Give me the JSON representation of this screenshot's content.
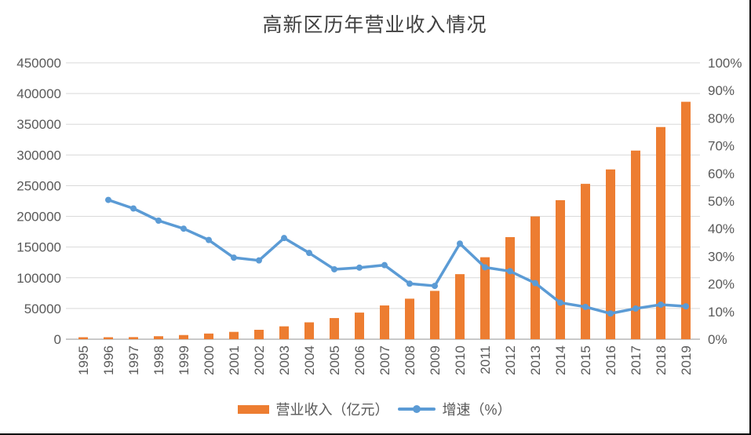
{
  "page": {
    "background": "#ffffff",
    "frame_border_color": "#000000"
  },
  "chart_data": {
    "type": "combo-bar-line",
    "title": "高新区历年营业收入情况",
    "categories": [
      "1995",
      "1996",
      "1997",
      "1998",
      "1999",
      "2000",
      "2001",
      "2002",
      "2003",
      "2004",
      "2005",
      "2006",
      "2007",
      "2008",
      "2009",
      "2010",
      "2011",
      "2012",
      "2013",
      "2014",
      "2015",
      "2016",
      "2017",
      "2018",
      "2019"
    ],
    "series": [
      {
        "name": "营业收入（亿元）",
        "type": "bar",
        "axis": "left",
        "color": "#ED7D31",
        "values": [
          1529,
          2300,
          3388,
          4840,
          6775,
          9209,
          11928,
          15326,
          20939,
          27466,
          34416,
          43320,
          54926,
          65986,
          78707,
          105917,
          133444,
          166219,
          199902,
          226372,
          252957,
          276419,
          307110,
          345459,
          386571
        ]
      },
      {
        "name": "增速（%）",
        "type": "line",
        "axis": "right",
        "color": "#5B9BD5",
        "values": [
          null,
          50.4,
          47.3,
          42.9,
          40.0,
          35.9,
          29.5,
          28.5,
          36.6,
          31.2,
          25.3,
          25.9,
          26.8,
          20.1,
          19.3,
          34.6,
          26.0,
          24.6,
          20.3,
          13.2,
          11.7,
          9.3,
          11.1,
          12.5,
          11.9
        ]
      }
    ],
    "axis_left": {
      "min": 0,
      "max": 450000,
      "step": 50000
    },
    "axis_right": {
      "min": 0,
      "max": 100,
      "step": 10,
      "suffix": "%"
    },
    "grid": true,
    "grid_color": "#D9D9D9",
    "axis_line_color": "#C9C9C9",
    "axis_text_color": "#595959",
    "title_color": "#404040",
    "legend_position": "bottom",
    "x_label_rotation": -90
  }
}
